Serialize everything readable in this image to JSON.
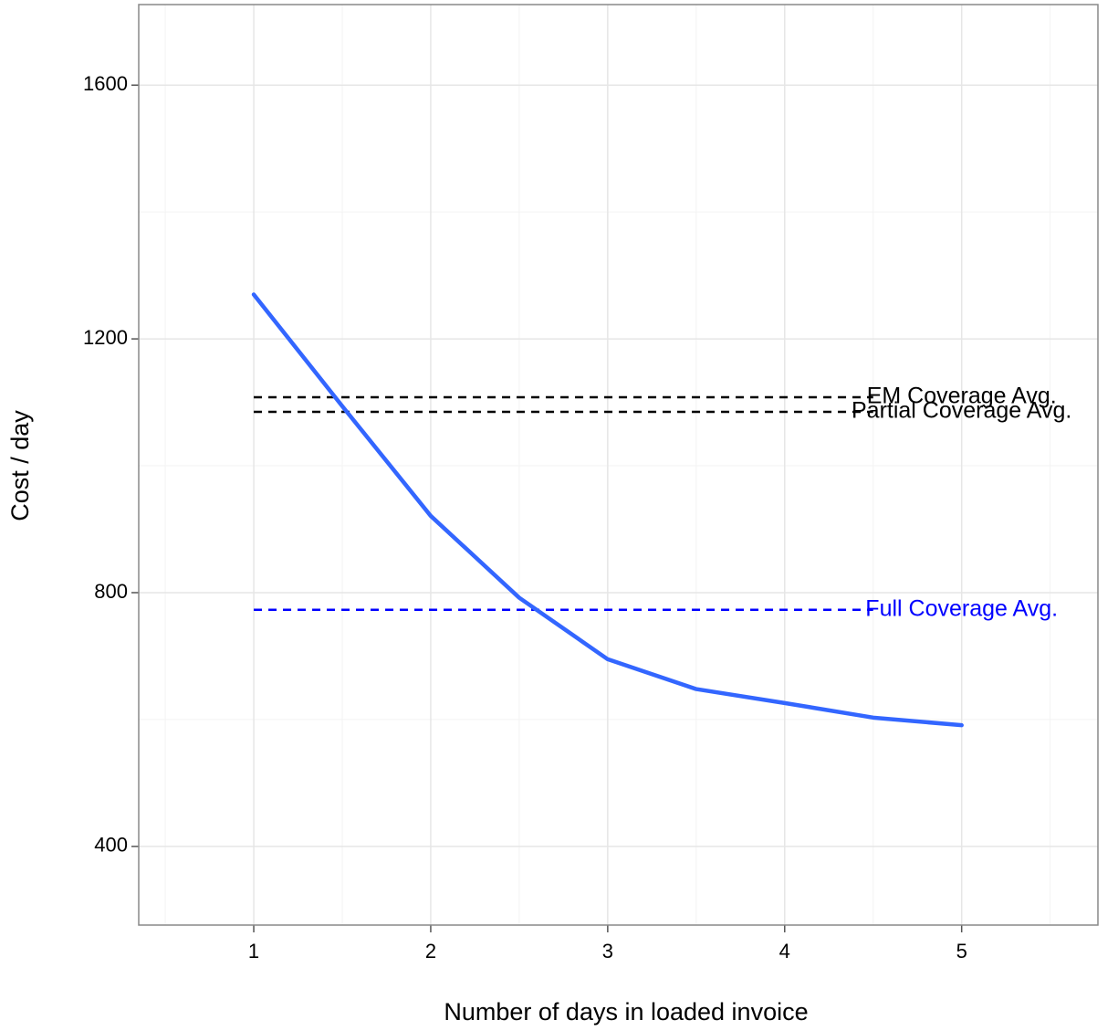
{
  "chart_data": {
    "type": "line",
    "x_label": "Number of days in loaded invoice",
    "y_label": "Cost / day",
    "x": [
      1,
      1.5,
      2,
      2.5,
      3,
      3.5,
      4,
      4.5,
      5
    ],
    "series": [
      {
        "color": "#3366ff",
        "values": [
          1270,
          1094,
          921,
          792,
          695,
          648,
          626,
          603,
          591
        ]
      }
    ],
    "hlines": [
      {
        "label": "EM Coverage Avg.",
        "y": 1108,
        "x": [
          1,
          4.5
        ],
        "label_x": 5,
        "color": "#000000"
      },
      {
        "label": "Partial Coverage Avg.",
        "y": 1085,
        "x": [
          1,
          4.5
        ],
        "label_x": 5,
        "color": "#000000"
      },
      {
        "label": "Full Coverage Avg.",
        "y": 773,
        "x": [
          1,
          4.5
        ],
        "label_x": 5,
        "color": "#0000ff"
      }
    ],
    "xlim": [
      0.35,
      5.77
    ],
    "ylim": [
      276,
      1727
    ],
    "xticks": [
      1,
      2,
      3,
      4,
      5
    ],
    "yticks": [
      400,
      800,
      1200,
      1600
    ],
    "x_minor_ticks": [
      0.5,
      1.5,
      2.5,
      3.5,
      4.5,
      5.5
    ],
    "y_minor_ticks": [
      600,
      1000,
      1400
    ],
    "grid": true
  }
}
